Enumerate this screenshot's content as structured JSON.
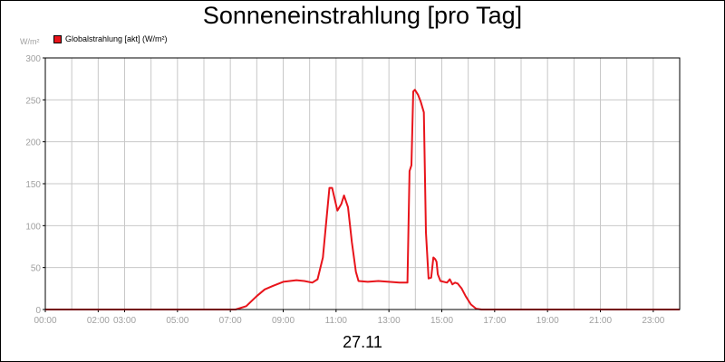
{
  "chart_data": {
    "type": "line",
    "title": "Sonneneinstrahlung [pro Tag]",
    "ylabel_unit": "W/m²",
    "xlabel": "27.11",
    "ylim": [
      0,
      300
    ],
    "y_ticks": [
      "0",
      "50",
      "100",
      "150",
      "200",
      "250",
      "300"
    ],
    "x_ticks": [
      {
        "h": 0,
        "label": "00:00"
      },
      {
        "h": 2,
        "label": "02:00"
      },
      {
        "h": 3,
        "label": "03:00"
      },
      {
        "h": 5,
        "label": "05:00"
      },
      {
        "h": 7,
        "label": "07:00"
      },
      {
        "h": 9,
        "label": "09:00"
      },
      {
        "h": 11,
        "label": "11:00"
      },
      {
        "h": 13,
        "label": "13:00"
      },
      {
        "h": 15,
        "label": "15:00"
      },
      {
        "h": 17,
        "label": "17:00"
      },
      {
        "h": 19,
        "label": "19:00"
      },
      {
        "h": 21,
        "label": "21:00"
      },
      {
        "h": 23,
        "label": "23:00"
      }
    ],
    "x_range_hours": [
      0,
      24
    ],
    "grid": true,
    "legend_position": "top-left",
    "series": [
      {
        "name": "Globalstrahlung [akt] (W/m²)",
        "color": "#e8141b",
        "points": [
          [
            0.0,
            0
          ],
          [
            7.2,
            0
          ],
          [
            7.6,
            4
          ],
          [
            8.0,
            16
          ],
          [
            8.3,
            24
          ],
          [
            8.6,
            28
          ],
          [
            9.0,
            33
          ],
          [
            9.5,
            35
          ],
          [
            9.8,
            34
          ],
          [
            10.1,
            32
          ],
          [
            10.3,
            36
          ],
          [
            10.5,
            62
          ],
          [
            10.75,
            145
          ],
          [
            10.85,
            145
          ],
          [
            11.05,
            118
          ],
          [
            11.2,
            126
          ],
          [
            11.3,
            136
          ],
          [
            11.45,
            122
          ],
          [
            11.6,
            80
          ],
          [
            11.75,
            45
          ],
          [
            11.85,
            34
          ],
          [
            12.2,
            33
          ],
          [
            12.6,
            34
          ],
          [
            13.0,
            33
          ],
          [
            13.4,
            32
          ],
          [
            13.7,
            32
          ],
          [
            13.78,
            165
          ],
          [
            13.85,
            172
          ],
          [
            13.92,
            260
          ],
          [
            13.98,
            262
          ],
          [
            14.1,
            256
          ],
          [
            14.2,
            248
          ],
          [
            14.32,
            235
          ],
          [
            14.4,
            92
          ],
          [
            14.5,
            37
          ],
          [
            14.6,
            38
          ],
          [
            14.68,
            62
          ],
          [
            14.75,
            60
          ],
          [
            14.8,
            57
          ],
          [
            14.85,
            42
          ],
          [
            14.95,
            34
          ],
          [
            15.2,
            32
          ],
          [
            15.3,
            36
          ],
          [
            15.4,
            30
          ],
          [
            15.5,
            32
          ],
          [
            15.6,
            31
          ],
          [
            15.75,
            25
          ],
          [
            15.9,
            16
          ],
          [
            16.1,
            6
          ],
          [
            16.3,
            1
          ],
          [
            16.5,
            0
          ],
          [
            24.0,
            0
          ]
        ]
      }
    ]
  }
}
